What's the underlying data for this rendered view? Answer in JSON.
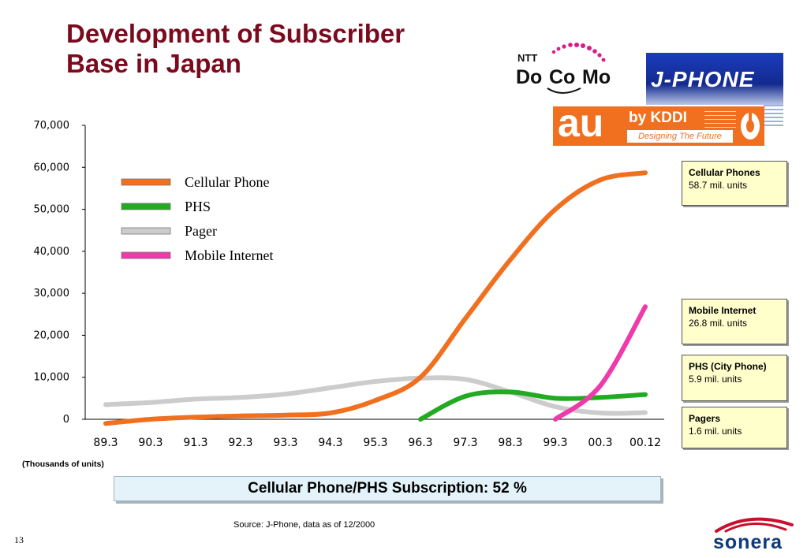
{
  "title": {
    "line1": "Development of Subscriber",
    "line2": "Base in Japan"
  },
  "logos": {
    "docomo": {
      "ntt": "NTT",
      "do": "Do",
      "co": "Co",
      "mo": "Mo"
    },
    "jphone": "J-PHONE",
    "au": {
      "au": "au",
      "by": "by KDDI",
      "tagline": "Designing The Future"
    },
    "sonera": "sonera"
  },
  "chart_data": {
    "type": "line",
    "x": [
      "89.3",
      "90.3",
      "91.3",
      "92.3",
      "93.3",
      "94.3",
      "95.3",
      "96.3",
      "97.3",
      "98.3",
      "99.3",
      "00.3",
      "00.12"
    ],
    "ylim": [
      0,
      70000
    ],
    "yticks": [
      "0",
      "10,000",
      "20,000",
      "30,000",
      "40,000",
      "50,000",
      "60,000",
      "70,000"
    ],
    "ytick_values": [
      0,
      10000,
      20000,
      30000,
      40000,
      50000,
      60000,
      70000
    ],
    "series": [
      {
        "name": "Cellular Phone",
        "color": "#f07020",
        "values": [
          -1000,
          0,
          500,
          800,
          1000,
          1500,
          4500,
          10000,
          24000,
          38000,
          50000,
          57000,
          58700
        ]
      },
      {
        "name": "PHS",
        "color": "#22aa22",
        "values": [
          null,
          null,
          null,
          null,
          null,
          null,
          null,
          0,
          5500,
          6500,
          5000,
          5200,
          5900
        ]
      },
      {
        "name": "Pager",
        "color": "#cccccc",
        "values": [
          3500,
          4000,
          4800,
          5200,
          6000,
          7500,
          9000,
          9800,
          9500,
          6500,
          3000,
          1500,
          1600
        ]
      },
      {
        "name": "Mobile Internet",
        "color": "#ee3aaa",
        "values": [
          null,
          null,
          null,
          null,
          null,
          null,
          null,
          null,
          null,
          null,
          0,
          8000,
          26800
        ]
      }
    ],
    "legend_position": "top-left",
    "grid": false,
    "units_note": "(Thousands of units)"
  },
  "info_boxes": [
    {
      "title": "Cellular Phones",
      "value": "58.7  mil. units"
    },
    {
      "title": "Mobile Internet",
      "value": "26.8  mil. units"
    },
    {
      "title": "PHS (City Phone)",
      "value": " 5.9 mil. units"
    },
    {
      "title": "Pagers",
      "value": " 1.6 mil. units"
    }
  ],
  "subscription_text": "Cellular Phone/PHS Subscription: 52 %",
  "source": "Source: J-Phone, data as of 12/2000",
  "page_number": "13"
}
